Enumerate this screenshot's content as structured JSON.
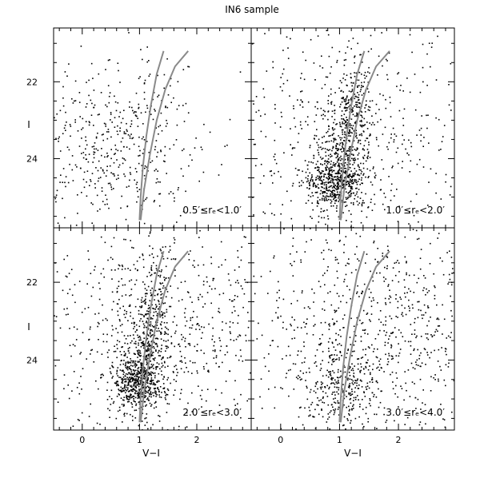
{
  "figure": {
    "title": "IN6 sample",
    "xlabel": "V−I",
    "ylabel": "I"
  },
  "colors": {
    "stars": "#000000",
    "isochrone": "#8a8a8a",
    "frame": "#000000"
  },
  "chart_data": [
    {
      "type": "scatter",
      "panel": "top-left",
      "label": "0.5′≤rₑ<1.0′",
      "xlim": [
        -0.5,
        2.95
      ],
      "ylim": [
        25.8,
        20.6
      ],
      "xticks": [
        0,
        1,
        2
      ],
      "xtick_labels": [
        "",
        "",
        ""
      ],
      "yticks": [
        22,
        24
      ],
      "ytick_labels": [
        "22",
        "24"
      ],
      "density": 520,
      "field": [
        {
          "x": 0.5,
          "y": 23.8,
          "sx": 0.75,
          "sy": 1.15,
          "w": 0.8
        },
        {
          "x": 1.15,
          "y": 23.2,
          "sx": 0.45,
          "sy": 1.3,
          "w": 0.2
        }
      ],
      "series": [
        {
          "kind": "isochrone",
          "points": [
            [
              1.0,
              25.6
            ],
            [
              1.02,
              25.0
            ],
            [
              1.06,
              24.2
            ],
            [
              1.12,
              23.4
            ],
            [
              1.2,
              22.6
            ],
            [
              1.3,
              21.8
            ],
            [
              1.42,
              21.2
            ]
          ]
        },
        {
          "kind": "isochrone",
          "points": [
            [
              1.02,
              25.6
            ],
            [
              1.08,
              24.8
            ],
            [
              1.18,
              23.9
            ],
            [
              1.3,
              23.0
            ],
            [
              1.45,
              22.2
            ],
            [
              1.62,
              21.6
            ],
            [
              1.85,
              21.2
            ]
          ]
        }
      ]
    },
    {
      "type": "scatter",
      "panel": "top-right",
      "label": "1.0′≤rₑ<2.0′",
      "xlim": [
        -0.5,
        2.95
      ],
      "ylim": [
        25.8,
        20.6
      ],
      "xticks": [
        0,
        1,
        2
      ],
      "xtick_labels": [
        "",
        "",
        ""
      ],
      "yticks": [
        22,
        24
      ],
      "ytick_labels": [
        "",
        ""
      ],
      "density": 1550,
      "field": [
        {
          "x": 0.9,
          "y": 24.6,
          "sx": 0.25,
          "sy": 0.35,
          "w": 0.32
        },
        {
          "x": 1.1,
          "y": 23.6,
          "sx": 0.2,
          "sy": 0.7,
          "w": 0.2
        },
        {
          "x": 1.25,
          "y": 22.4,
          "sx": 0.15,
          "sy": 0.6,
          "w": 0.1
        },
        {
          "x": 1.0,
          "y": 23.5,
          "sx": 1.3,
          "sy": 1.6,
          "w": 0.38
        }
      ],
      "series": [
        {
          "kind": "isochrone",
          "points": [
            [
              1.0,
              25.6
            ],
            [
              1.02,
              25.0
            ],
            [
              1.06,
              24.2
            ],
            [
              1.12,
              23.4
            ],
            [
              1.2,
              22.6
            ],
            [
              1.3,
              21.8
            ],
            [
              1.42,
              21.2
            ]
          ]
        },
        {
          "kind": "isochrone",
          "points": [
            [
              1.02,
              25.6
            ],
            [
              1.08,
              24.8
            ],
            [
              1.18,
              23.9
            ],
            [
              1.3,
              23.0
            ],
            [
              1.45,
              22.2
            ],
            [
              1.62,
              21.6
            ],
            [
              1.85,
              21.2
            ]
          ]
        }
      ]
    },
    {
      "type": "scatter",
      "panel": "bottom-left",
      "label": "2.0′≤rₑ<3.0′",
      "xlim": [
        -0.5,
        2.95
      ],
      "ylim": [
        25.8,
        20.6
      ],
      "xticks": [
        0,
        1,
        2
      ],
      "xtick_labels": [
        "0",
        "1",
        "2"
      ],
      "yticks": [
        22,
        24
      ],
      "ytick_labels": [
        "22",
        "24"
      ],
      "density": 1700,
      "field": [
        {
          "x": 0.95,
          "y": 24.6,
          "sx": 0.22,
          "sy": 0.35,
          "w": 0.3
        },
        {
          "x": 1.12,
          "y": 23.6,
          "sx": 0.18,
          "sy": 0.6,
          "w": 0.15
        },
        {
          "x": 1.25,
          "y": 22.4,
          "sx": 0.15,
          "sy": 0.7,
          "w": 0.08
        },
        {
          "x": 1.3,
          "y": 23.3,
          "sx": 1.2,
          "sy": 1.6,
          "w": 0.47
        }
      ],
      "series": [
        {
          "kind": "isochrone",
          "points": [
            [
              1.0,
              25.6
            ],
            [
              1.02,
              25.0
            ],
            [
              1.06,
              24.2
            ],
            [
              1.12,
              23.4
            ],
            [
              1.2,
              22.6
            ],
            [
              1.3,
              21.8
            ],
            [
              1.42,
              21.2
            ]
          ]
        },
        {
          "kind": "isochrone",
          "points": [
            [
              1.02,
              25.6
            ],
            [
              1.08,
              24.8
            ],
            [
              1.18,
              23.9
            ],
            [
              1.3,
              23.0
            ],
            [
              1.45,
              22.2
            ],
            [
              1.62,
              21.6
            ],
            [
              1.85,
              21.2
            ]
          ]
        }
      ]
    },
    {
      "type": "scatter",
      "panel": "bottom-right",
      "label": "3.0′≤rₑ<4.0′",
      "xlim": [
        -0.5,
        2.95
      ],
      "ylim": [
        25.8,
        20.6
      ],
      "xticks": [
        0,
        1,
        2
      ],
      "xtick_labels": [
        "0",
        "1",
        "2"
      ],
      "yticks": [
        22,
        24
      ],
      "ytick_labels": [
        "",
        ""
      ],
      "density": 1150,
      "field": [
        {
          "x": 1.5,
          "y": 23.2,
          "sx": 1.1,
          "sy": 1.6,
          "w": 0.8
        },
        {
          "x": 1.0,
          "y": 24.6,
          "sx": 0.35,
          "sy": 0.5,
          "w": 0.2
        }
      ],
      "series": [
        {
          "kind": "isochrone",
          "points": [
            [
              1.0,
              25.6
            ],
            [
              1.02,
              25.0
            ],
            [
              1.06,
              24.2
            ],
            [
              1.12,
              23.4
            ],
            [
              1.2,
              22.6
            ],
            [
              1.3,
              21.8
            ],
            [
              1.42,
              21.2
            ]
          ]
        },
        {
          "kind": "isochrone",
          "points": [
            [
              1.02,
              25.6
            ],
            [
              1.08,
              24.8
            ],
            [
              1.18,
              23.9
            ],
            [
              1.3,
              23.0
            ],
            [
              1.45,
              22.2
            ],
            [
              1.62,
              21.6
            ],
            [
              1.85,
              21.2
            ]
          ]
        }
      ]
    }
  ]
}
